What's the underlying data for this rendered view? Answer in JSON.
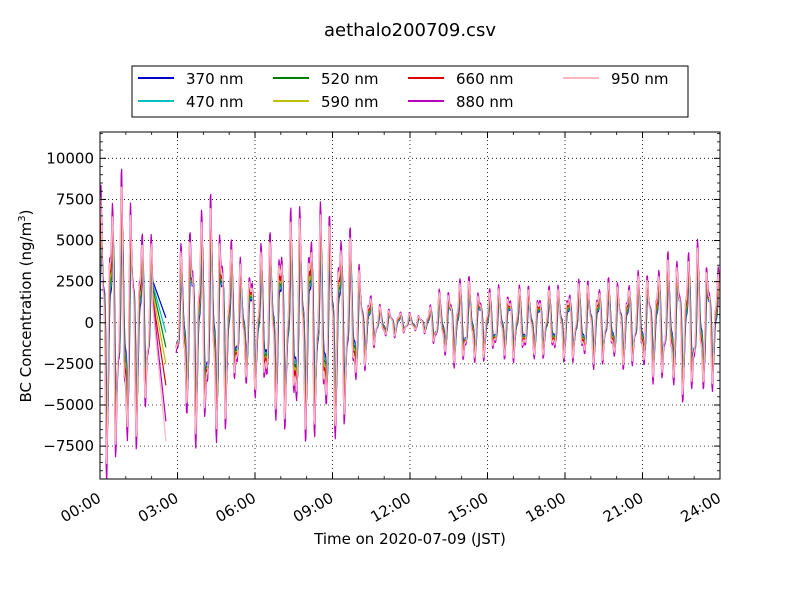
{
  "chart_data": {
    "type": "line",
    "title": "aethalo200709.csv",
    "xlabel": "Time on 2020-07-09 (JST)",
    "ylabel_main": "BC Concentration (ng/m",
    "ylabel_sup": "3",
    "ylabel_close": ")",
    "xlim": [
      0,
      24
    ],
    "ylim": [
      -9500,
      11600
    ],
    "xticks": [
      {
        "value": 0,
        "label": "00:00"
      },
      {
        "value": 3,
        "label": "03:00"
      },
      {
        "value": 6,
        "label": "06:00"
      },
      {
        "value": 9,
        "label": "09:00"
      },
      {
        "value": 12,
        "label": "12:00"
      },
      {
        "value": 15,
        "label": "15:00"
      },
      {
        "value": 18,
        "label": "18:00"
      },
      {
        "value": 21,
        "label": "21:00"
      },
      {
        "value": 24,
        "label": "24:00"
      }
    ],
    "yticks": [
      {
        "value": -7500,
        "label": "−7500"
      },
      {
        "value": -5000,
        "label": "−5000"
      },
      {
        "value": -2500,
        "label": "−2500"
      },
      {
        "value": 0,
        "label": "0"
      },
      {
        "value": 2500,
        "label": "2500"
      },
      {
        "value": 5000,
        "label": "5000"
      },
      {
        "value": 7500,
        "label": "7500"
      },
      {
        "value": 10000,
        "label": "10000"
      }
    ],
    "grid": true,
    "legend_position": "top-center",
    "envelope_hours": [
      0,
      1,
      2,
      2.9,
      3.5,
      4.5,
      5.5,
      6.5,
      7.5,
      8.5,
      9.5,
      10.2,
      10.8,
      11.5,
      12,
      12.5,
      13,
      14,
      15,
      16,
      17,
      18,
      19,
      20,
      21,
      22,
      23,
      24
    ],
    "envelope_ng_m3": [
      7800,
      7500,
      4200,
      2500,
      6000,
      6500,
      3000,
      4500,
      6000,
      6000,
      5500,
      2500,
      900,
      700,
      500,
      400,
      1500,
      2500,
      1800,
      2000,
      1800,
      2000,
      2300,
      2200,
      2600,
      3500,
      4200,
      3000
    ],
    "gap_hours": [
      2.05,
      2.55
    ],
    "series": [
      {
        "name": "370 nm",
        "color": "#0000cc",
        "scale": 0.7,
        "phase": 0.0,
        "gap_end_ng_m3": 300
      },
      {
        "name": "470 nm",
        "color": "#00bfbf",
        "scale": 0.75,
        "phase": 0.25,
        "gap_end_ng_m3": -600
      },
      {
        "name": "520 nm",
        "color": "#008000",
        "scale": 0.8,
        "phase": 0.45,
        "gap_end_ng_m3": -1500
      },
      {
        "name": "590 nm",
        "color": "#bfbf00",
        "scale": 0.85,
        "phase": 0.65,
        "gap_end_ng_m3": -2500
      },
      {
        "name": "660 nm",
        "color": "#dd0000",
        "scale": 0.9,
        "phase": 0.85,
        "gap_end_ng_m3": -3800
      },
      {
        "name": "880 nm",
        "color": "#bb00bb",
        "scale": 1.12,
        "phase": 1.0,
        "gap_end_ng_m3": -6000
      },
      {
        "name": "950 nm",
        "color": "#ffb6c1",
        "scale": 1.0,
        "phase": 1.1,
        "gap_end_ng_m3": -7200
      }
    ]
  }
}
